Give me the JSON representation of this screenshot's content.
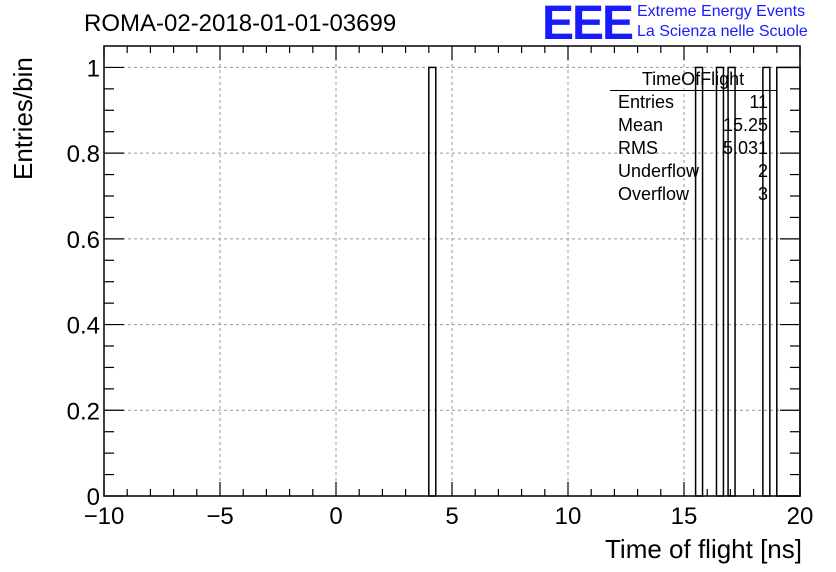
{
  "chart_data": {
    "type": "bar",
    "title": "ROMA-02-2018-01-01-03699",
    "xlabel": "Time of flight [ns]",
    "ylabel": "Entries/bin",
    "xlim": [
      -10,
      20
    ],
    "ylim": [
      0,
      1.05
    ],
    "xticks": [
      "−10",
      "−5",
      "0",
      "5",
      "10",
      "15",
      "20"
    ],
    "xtick_values": [
      -10,
      -5,
      0,
      5,
      10,
      15,
      20
    ],
    "yticks": [
      "0",
      "0.2",
      "0.4",
      "0.6",
      "0.8",
      "1"
    ],
    "ytick_values": [
      0,
      0.2,
      0.4,
      0.6,
      0.8,
      1.0
    ],
    "grid": true,
    "bins": [
      {
        "x0": 4.0,
        "x1": 4.3,
        "value": 1
      },
      {
        "x0": 15.5,
        "x1": 15.8,
        "value": 1
      },
      {
        "x0": 16.4,
        "x1": 16.7,
        "value": 1
      },
      {
        "x0": 16.9,
        "x1": 17.2,
        "value": 1
      },
      {
        "x0": 18.4,
        "x1": 18.7,
        "value": 1
      },
      {
        "x0": 19.0,
        "x1": 20.0,
        "value": 1
      }
    ]
  },
  "logo": {
    "mark": "EEE",
    "line1": "Extreme Energy Events",
    "line2": "La Scienza nelle Scuole",
    "color": "#1a1aff"
  },
  "stats_box": {
    "name": "TimeOfFlight",
    "rows": [
      {
        "label": "Entries",
        "value": "11"
      },
      {
        "label": "Mean",
        "value": "15.25"
      },
      {
        "label": "RMS",
        "value": "5.031"
      },
      {
        "label": "Underflow",
        "value": "2"
      },
      {
        "label": "Overflow",
        "value": "3"
      }
    ]
  }
}
